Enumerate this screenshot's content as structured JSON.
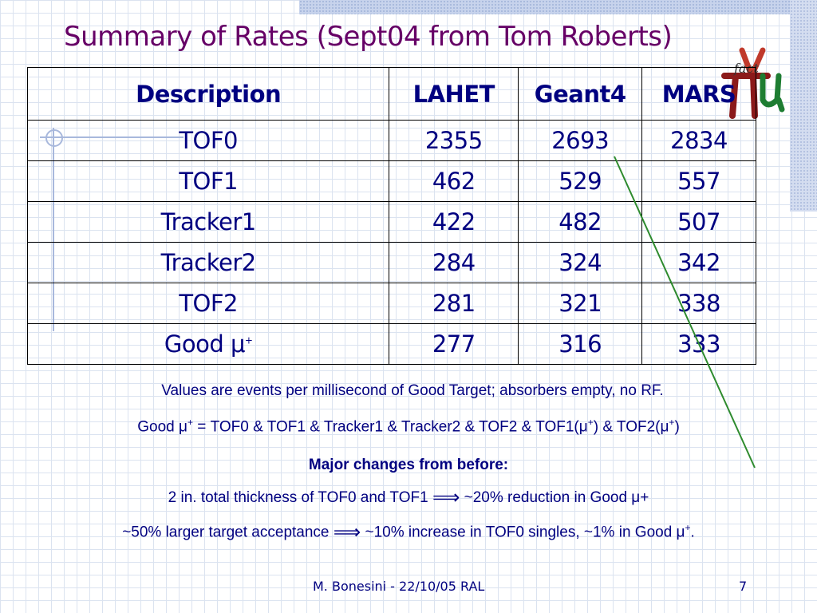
{
  "title": "Summary of Rates (Sept04 from Tom Roberts)",
  "logo": {
    "text": "fact"
  },
  "table": {
    "headers": [
      "Description",
      "LAHET",
      "Geant4",
      "MARS"
    ],
    "rows": [
      [
        "TOF0",
        "2355",
        "2693",
        "2834"
      ],
      [
        "TOF1",
        "462",
        "529",
        "557"
      ],
      [
        "Tracker1",
        "422",
        "482",
        "507"
      ],
      [
        "Tracker2",
        "284",
        "324",
        "342"
      ],
      [
        "TOF2",
        "281",
        "321",
        "338"
      ],
      [
        "Good μ",
        "277",
        "316",
        "333"
      ]
    ],
    "good_mu_sup": "+"
  },
  "notes": {
    "units": "Values are events per millisecond of Good Target; absorbers empty, no RF.",
    "good_def_lead": "Good μ",
    "good_def_sup1": "+",
    "good_def_mid": " = TOF0 & TOF1 & Tracker1 & Tracker2 & TOF2 & TOF1(μ",
    "good_def_sup2": "+",
    "good_def_mid2": ") & TOF2(μ",
    "good_def_sup3": "+",
    "good_def_end": ")",
    "changes_heading": "Major changes from before:",
    "change1_before": "2 in. total thickness of TOF0 and TOF1",
    "change1_after": "~20% reduction in Good μ+",
    "change2_before": "~50% larger target acceptance",
    "change2_after": "~10% increase in TOF0 singles, ~1% in Good μ",
    "change2_sup": "+",
    "change2_end": ".",
    "implies_symbol": "⟹"
  },
  "footer": {
    "author": "M. Bonesini - 22/10/05 RAL",
    "page": "7"
  },
  "colors": {
    "title": "#660066",
    "text": "#000080",
    "annotation_line": "#2e8b2e"
  }
}
